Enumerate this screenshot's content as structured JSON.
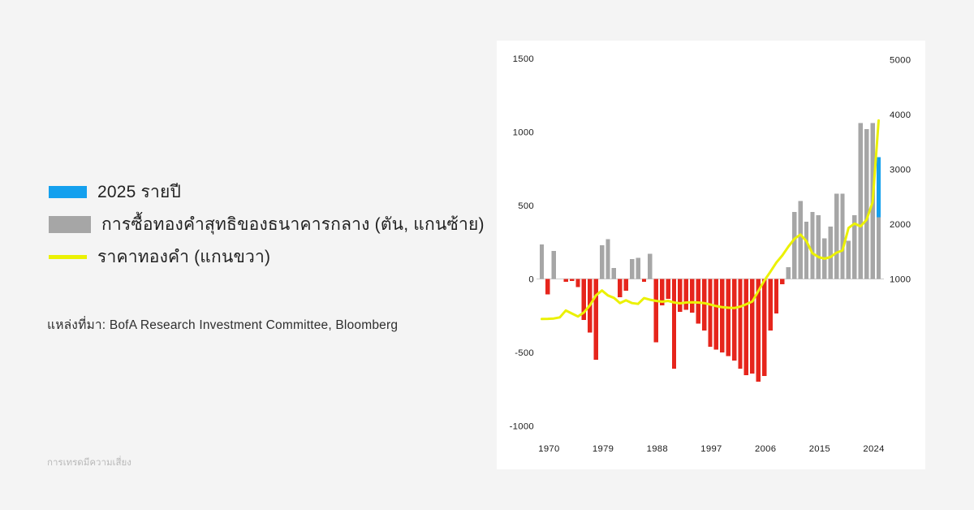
{
  "colors": {
    "background": "#f4f4f4",
    "panel": "#ffffff",
    "bar_positive": "#a6a6a6",
    "bar_negative": "#e6251c",
    "bar_2025": "#14a0ee",
    "price_line": "#ebf104",
    "zero_line": "#cccccc",
    "tick_text": "#1b1b1b"
  },
  "legend": {
    "items": [
      {
        "swatch": "blue-rect",
        "color": "#14a0ee",
        "label": "2025 รายปี"
      },
      {
        "swatch": "gray-rect",
        "color": "#a6a6a6",
        "label": "การซื้อทองคำสุทธิของธนาคารกลาง (ตัน, แกนซ้าย)"
      },
      {
        "swatch": "yellow-line",
        "color": "#ebf104",
        "label": "ราคาทองคำ (แกนขวา)"
      }
    ]
  },
  "source": {
    "label": "แหล่งที่มา: BofA Research Investment Committee, Bloomberg"
  },
  "footer": {
    "note": "การเทรดมีความเสี่ยง"
  },
  "chart_data": {
    "type": "combo",
    "title": "",
    "series_info": [
      {
        "name": "central-bank-net-gold-purchases",
        "type": "bar",
        "axis": "left",
        "unit": "tonnes"
      },
      {
        "name": "gold-price",
        "type": "line",
        "axis": "right"
      }
    ],
    "years": [
      1969,
      1970,
      1971,
      1972,
      1973,
      1974,
      1975,
      1976,
      1977,
      1978,
      1979,
      1980,
      1981,
      1982,
      1983,
      1984,
      1985,
      1986,
      1987,
      1988,
      1989,
      1990,
      1991,
      1992,
      1993,
      1994,
      1995,
      1996,
      1997,
      1998,
      1999,
      2000,
      2001,
      2002,
      2003,
      2004,
      2005,
      2006,
      2007,
      2008,
      2009,
      2010,
      2011,
      2012,
      2013,
      2014,
      2015,
      2016,
      2017,
      2018,
      2019,
      2020,
      2021,
      2022,
      2023,
      2024,
      2025
    ],
    "bar_values": [
      235,
      -105,
      190,
      0,
      -20,
      -15,
      -55,
      -280,
      -365,
      -550,
      230,
      270,
      75,
      -125,
      -80,
      135,
      145,
      -20,
      170,
      -430,
      -180,
      -135,
      -610,
      -225,
      -210,
      -230,
      -305,
      -350,
      -460,
      -480,
      -500,
      -525,
      -555,
      -610,
      -655,
      -645,
      -700,
      -660,
      -350,
      -235,
      -35,
      80,
      455,
      530,
      390,
      455,
      435,
      275,
      355,
      580,
      580,
      260,
      435,
      1060,
      1020,
      1060,
      830
    ],
    "line_values": [
      270,
      273,
      278,
      300,
      425,
      370,
      315,
      390,
      520,
      700,
      790,
      700,
      655,
      560,
      610,
      560,
      545,
      650,
      620,
      600,
      585,
      600,
      570,
      555,
      570,
      575,
      570,
      560,
      535,
      505,
      485,
      475,
      470,
      495,
      540,
      590,
      780,
      970,
      1130,
      1300,
      1430,
      1590,
      1730,
      1810,
      1690,
      1470,
      1400,
      1370,
      1400,
      1480,
      1520,
      1930,
      2010,
      1960,
      2080,
      2400,
      3890
    ],
    "last_bar": {
      "year": 2025,
      "actual": 420,
      "annualized_total": 830
    },
    "left_axis": {
      "ticks": [
        1500,
        1000,
        500,
        0,
        -500,
        -1000
      ],
      "range": [
        -1000,
        1500
      ]
    },
    "right_axis": {
      "ticks": [
        5000,
        4000,
        3000,
        2000,
        1000
      ],
      "range_visible": [
        1000,
        5000
      ]
    },
    "x_axis": {
      "ticks": [
        1970,
        1979,
        1988,
        1997,
        2006,
        2015,
        2024
      ]
    },
    "grid": false,
    "legend_position": "outside-left"
  }
}
